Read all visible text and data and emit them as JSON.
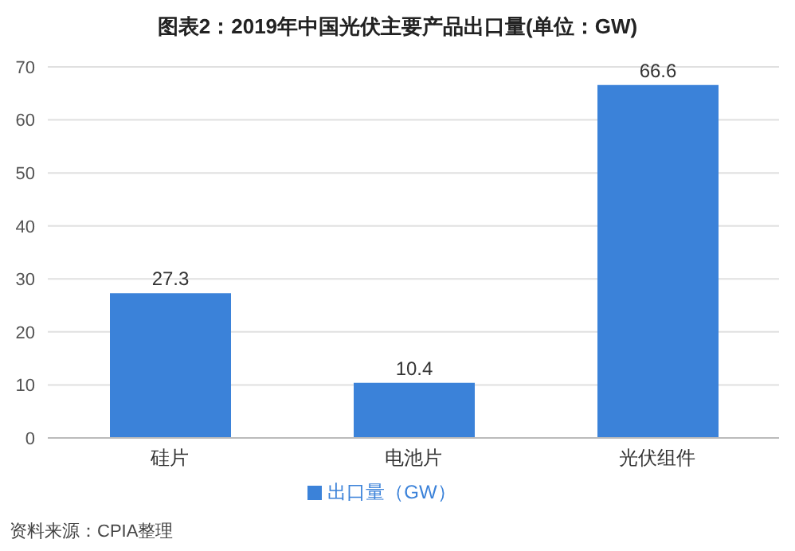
{
  "chart_data": {
    "type": "bar",
    "title": "图表2：2019年中国光伏主要产品出口量(单位：GW)",
    "categories": [
      "硅片",
      "电池片",
      "光伏组件"
    ],
    "series": [
      {
        "name": "出口量（GW）",
        "color": "#3b82d9",
        "values": [
          27.3,
          10.4,
          66.6
        ]
      }
    ],
    "ylim": [
      0,
      70
    ],
    "yticks": [
      0,
      10,
      20,
      30,
      40,
      50,
      60,
      70
    ],
    "grid": "y",
    "legend": "bottom",
    "data_labels": true,
    "annotations": [
      "资料来源：CPIA整理"
    ]
  }
}
